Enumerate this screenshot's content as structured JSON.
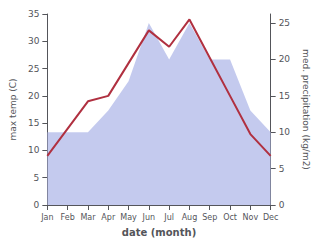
{
  "chart_data": {
    "type": "line",
    "xlabel": "date (month)",
    "ylabel": "max temp (C)",
    "y2label": "med. precipitation (kg/m2)",
    "categories": [
      "Jan",
      "Feb",
      "Mar",
      "Apr",
      "May",
      "Jun",
      "Jul",
      "Aug",
      "Sep",
      "Oct",
      "Nov",
      "Dec"
    ],
    "series": [
      {
        "type": "area",
        "axis": "y2",
        "color": "#b0b8e8",
        "values": [
          10,
          10,
          10,
          13,
          17,
          25,
          20,
          25,
          20,
          20,
          13,
          10
        ]
      },
      {
        "type": "line",
        "color": "#b03040",
        "values": [
          9,
          14,
          19,
          20,
          26,
          32,
          29,
          34,
          27,
          20,
          13,
          9
        ]
      }
    ],
    "ylim": [
      0,
      35
    ],
    "yticks": [
      0,
      5,
      10,
      15,
      20,
      25,
      30,
      35
    ],
    "y2lim": [
      0,
      26.25
    ],
    "y2ticks": [
      0,
      5,
      10,
      15,
      20,
      25
    ],
    "grid": false
  }
}
